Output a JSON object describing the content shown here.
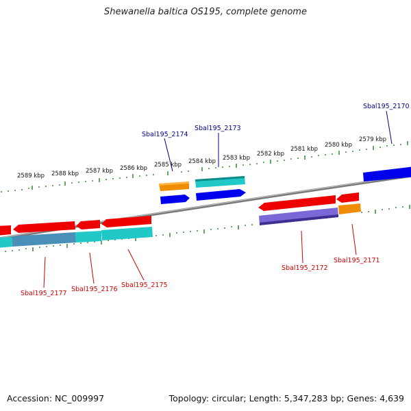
{
  "title": "Shewanella baltica OS195, complete genome",
  "footer": {
    "accession": "Accession: NC_009997",
    "summary": "Topology: circular; Length: 5,347,283 bp; Genes: 4,639"
  },
  "kbp_labels": [
    "2579 kbp",
    "2580 kbp",
    "2581 kbp",
    "2582 kbp",
    "2583 kbp",
    "2584 kbp",
    "2585 kbp",
    "2586 kbp",
    "2587 kbp",
    "2588 kbp",
    "2589 kbp"
  ],
  "gene_labels": {
    "fwd": [
      "Sbal195_2170",
      "Sbal195_2173",
      "Sbal195_2174"
    ],
    "rev": [
      "Sbal195_2171",
      "Sbal195_2172",
      "Sbal195_2175",
      "Sbal195_2176",
      "Sbal195_2177"
    ]
  },
  "colors": {
    "backbone": "#777777",
    "tick": "#2e8b2e",
    "cds_fwd": "#0000ee",
    "cds_rev": "#ee0000",
    "fwd_feature": "#20c8c8",
    "rev_feature": "#7b68d6",
    "orange_feature": "#f08c00",
    "label_fwd": "#00008b",
    "label_rev": "#cc0000"
  }
}
